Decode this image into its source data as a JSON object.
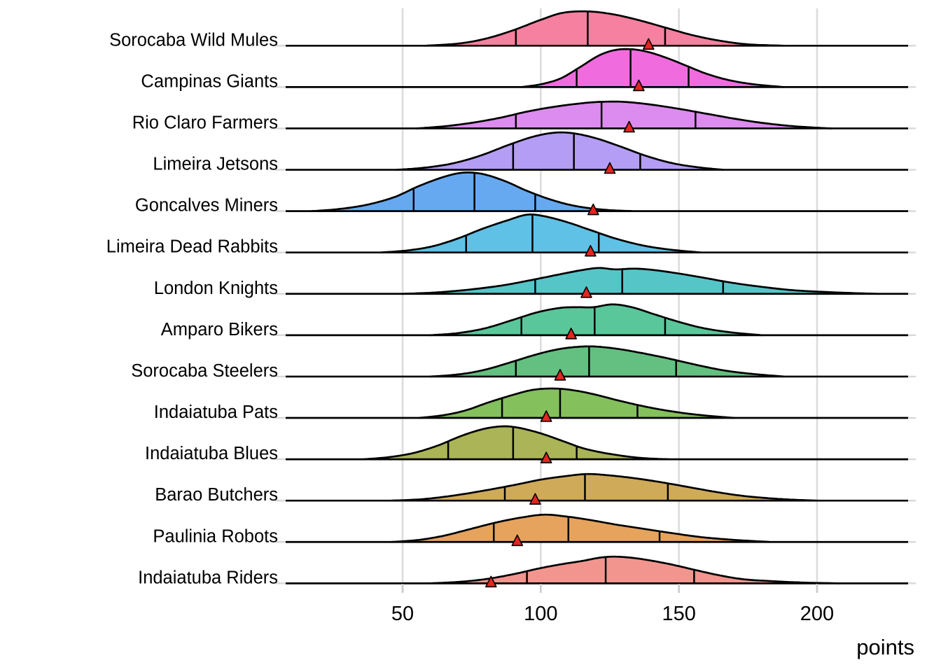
{
  "chart_data": {
    "type": "ridgeline",
    "title": "",
    "xlabel": "points",
    "ylabel": "",
    "x_ticks": [
      50,
      100,
      150,
      200
    ],
    "x_domain": [
      8,
      242
    ],
    "grid": "vertical-major",
    "legend": "none",
    "marker_shape": "red-triangle",
    "marker_color": "#e52521",
    "gridline_color": "#dcdcdc",
    "outline_color": "#000000",
    "quantiles_shown": [
      0.25,
      0.5,
      0.75
    ],
    "teams": [
      {
        "name": "Sorocaba Wild Mules",
        "color": "#f6809f",
        "quartiles": [
          91,
          117,
          145
        ],
        "observed": 139,
        "density": [
          [
            58,
            0
          ],
          [
            70,
            3
          ],
          [
            80,
            10
          ],
          [
            90,
            22
          ],
          [
            100,
            37
          ],
          [
            108,
            47
          ],
          [
            117,
            49
          ],
          [
            126,
            45
          ],
          [
            135,
            37
          ],
          [
            145,
            26
          ],
          [
            155,
            15
          ],
          [
            165,
            7
          ],
          [
            175,
            2
          ],
          [
            188,
            0
          ]
        ]
      },
      {
        "name": "Campinas Giants",
        "color": "#f06cde",
        "quartiles": [
          113,
          132.5,
          153.5
        ],
        "observed": 135.5,
        "density": [
          [
            93,
            0
          ],
          [
            100,
            4
          ],
          [
            107,
            12
          ],
          [
            114,
            28
          ],
          [
            121,
            45
          ],
          [
            127,
            53
          ],
          [
            133,
            54
          ],
          [
            139,
            50
          ],
          [
            146,
            41
          ],
          [
            153,
            30
          ],
          [
            160,
            19
          ],
          [
            168,
            10
          ],
          [
            177,
            4
          ],
          [
            188,
            0
          ]
        ]
      },
      {
        "name": "Rio Claro Farmers",
        "color": "#dc8cee",
        "quartiles": [
          91,
          122,
          156
        ],
        "observed": 132,
        "density": [
          [
            55,
            0
          ],
          [
            65,
            3
          ],
          [
            75,
            8
          ],
          [
            85,
            15
          ],
          [
            95,
            24
          ],
          [
            105,
            31
          ],
          [
            115,
            36
          ],
          [
            122,
            38
          ],
          [
            130,
            38
          ],
          [
            140,
            34
          ],
          [
            150,
            28
          ],
          [
            160,
            21
          ],
          [
            170,
            14
          ],
          [
            180,
            8
          ],
          [
            192,
            3
          ],
          [
            205,
            0
          ]
        ]
      },
      {
        "name": "Limeira Jetsons",
        "color": "#b49df4",
        "quartiles": [
          90,
          112,
          136
        ],
        "observed": 125,
        "density": [
          [
            48,
            0
          ],
          [
            58,
            3
          ],
          [
            68,
            9
          ],
          [
            78,
            20
          ],
          [
            88,
            35
          ],
          [
            97,
            47
          ],
          [
            105,
            53
          ],
          [
            112,
            52
          ],
          [
            120,
            45
          ],
          [
            129,
            33
          ],
          [
            138,
            20
          ],
          [
            147,
            10
          ],
          [
            156,
            4
          ],
          [
            166,
            0
          ]
        ]
      },
      {
        "name": "Goncalves Miners",
        "color": "#66a9f1",
        "quartiles": [
          54,
          76,
          98
        ],
        "observed": 119,
        "density": [
          [
            17,
            0
          ],
          [
            27,
            3
          ],
          [
            37,
            9
          ],
          [
            47,
            20
          ],
          [
            56,
            36
          ],
          [
            65,
            49
          ],
          [
            72,
            55
          ],
          [
            79,
            53
          ],
          [
            87,
            43
          ],
          [
            95,
            29
          ],
          [
            104,
            16
          ],
          [
            113,
            7
          ],
          [
            123,
            2
          ],
          [
            133,
            0
          ]
        ]
      },
      {
        "name": "Limeira Dead Rabbits",
        "color": "#60c1e6",
        "quartiles": [
          73,
          97,
          121
        ],
        "observed": 118,
        "density": [
          [
            42,
            0
          ],
          [
            52,
            3
          ],
          [
            61,
            9
          ],
          [
            70,
            20
          ],
          [
            79,
            34
          ],
          [
            88,
            46
          ],
          [
            95,
            54
          ],
          [
            101,
            52
          ],
          [
            109,
            44
          ],
          [
            118,
            32
          ],
          [
            127,
            20
          ],
          [
            137,
            10
          ],
          [
            147,
            4
          ],
          [
            158,
            0
          ]
        ]
      },
      {
        "name": "London Knights",
        "color": "#55c5c8",
        "quartiles": [
          98,
          129.5,
          166
        ],
        "observed": 116.5,
        "density": [
          [
            50,
            0
          ],
          [
            62,
            2
          ],
          [
            74,
            6
          ],
          [
            86,
            12
          ],
          [
            97,
            20
          ],
          [
            107,
            28
          ],
          [
            115,
            34
          ],
          [
            121,
            37
          ],
          [
            127,
            35
          ],
          [
            134,
            36
          ],
          [
            141,
            34
          ],
          [
            150,
            29
          ],
          [
            159,
            23
          ],
          [
            169,
            16
          ],
          [
            180,
            10
          ],
          [
            192,
            5
          ],
          [
            207,
            2
          ],
          [
            222,
            0
          ]
        ]
      },
      {
        "name": "Amparo Bikers",
        "color": "#5ac79b",
        "quartiles": [
          93,
          119.5,
          145
        ],
        "observed": 111,
        "density": [
          [
            60,
            0
          ],
          [
            70,
            3
          ],
          [
            80,
            10
          ],
          [
            90,
            22
          ],
          [
            99,
            33
          ],
          [
            107,
            39
          ],
          [
            113,
            40
          ],
          [
            119,
            40
          ],
          [
            126,
            44
          ],
          [
            133,
            40
          ],
          [
            141,
            30
          ],
          [
            150,
            19
          ],
          [
            159,
            10
          ],
          [
            169,
            4
          ],
          [
            180,
            0
          ]
        ]
      },
      {
        "name": "Sorocaba Steelers",
        "color": "#64c080",
        "quartiles": [
          91,
          117.5,
          149
        ],
        "observed": 107,
        "density": [
          [
            60,
            0
          ],
          [
            70,
            3
          ],
          [
            79,
            9
          ],
          [
            88,
            19
          ],
          [
            97,
            30
          ],
          [
            105,
            38
          ],
          [
            112,
            42
          ],
          [
            119,
            43
          ],
          [
            127,
            40
          ],
          [
            136,
            34
          ],
          [
            146,
            26
          ],
          [
            156,
            17
          ],
          [
            166,
            9
          ],
          [
            176,
            4
          ],
          [
            188,
            0
          ]
        ]
      },
      {
        "name": "Indaiatuba Pats",
        "color": "#84c05c",
        "quartiles": [
          86,
          107,
          135
        ],
        "observed": 102,
        "density": [
          [
            56,
            0
          ],
          [
            65,
            4
          ],
          [
            73,
            11
          ],
          [
            81,
            22
          ],
          [
            90,
            33
          ],
          [
            97,
            40
          ],
          [
            104,
            42
          ],
          [
            111,
            40
          ],
          [
            119,
            34
          ],
          [
            128,
            25
          ],
          [
            138,
            16
          ],
          [
            148,
            9
          ],
          [
            158,
            4
          ],
          [
            170,
            0
          ]
        ]
      },
      {
        "name": "Indaiatuba Blues",
        "color": "#abb456",
        "quartiles": [
          66.5,
          90,
          113
        ],
        "observed": 102,
        "density": [
          [
            36,
            0
          ],
          [
            45,
            3
          ],
          [
            54,
            9
          ],
          [
            63,
            20
          ],
          [
            71,
            33
          ],
          [
            79,
            43
          ],
          [
            86,
            47
          ],
          [
            92,
            45
          ],
          [
            100,
            37
          ],
          [
            108,
            26
          ],
          [
            116,
            15
          ],
          [
            126,
            7
          ],
          [
            136,
            2
          ],
          [
            146,
            0
          ]
        ]
      },
      {
        "name": "Barao Butchers",
        "color": "#cfaa59",
        "quartiles": [
          87,
          116,
          146
        ],
        "observed": 98,
        "density": [
          [
            46,
            0
          ],
          [
            57,
            2
          ],
          [
            68,
            7
          ],
          [
            79,
            14
          ],
          [
            90,
            22
          ],
          [
            100,
            30
          ],
          [
            109,
            35
          ],
          [
            117,
            38
          ],
          [
            125,
            36
          ],
          [
            134,
            32
          ],
          [
            144,
            26
          ],
          [
            154,
            19
          ],
          [
            164,
            12
          ],
          [
            175,
            6
          ],
          [
            188,
            2
          ],
          [
            200,
            0
          ]
        ]
      },
      {
        "name": "Paulinia Robots",
        "color": "#e6a35d",
        "quartiles": [
          83,
          110,
          143
        ],
        "observed": 91.5,
        "density": [
          [
            46,
            0
          ],
          [
            56,
            3
          ],
          [
            65,
            9
          ],
          [
            74,
            18
          ],
          [
            84,
            28
          ],
          [
            93,
            35
          ],
          [
            101,
            39
          ],
          [
            108,
            37
          ],
          [
            117,
            32
          ],
          [
            127,
            25
          ],
          [
            137,
            19
          ],
          [
            147,
            13
          ],
          [
            158,
            7
          ],
          [
            170,
            3
          ],
          [
            183,
            0
          ]
        ]
      },
      {
        "name": "Indaiatuba Riders",
        "color": "#f2958f",
        "quartiles": [
          95,
          123.5,
          155.5
        ],
        "observed": 82,
        "density": [
          [
            60,
            0
          ],
          [
            70,
            2
          ],
          [
            80,
            6
          ],
          [
            90,
            13
          ],
          [
            99,
            21
          ],
          [
            107,
            27
          ],
          [
            115,
            32
          ],
          [
            122,
            37
          ],
          [
            128,
            38
          ],
          [
            136,
            35
          ],
          [
            146,
            28
          ],
          [
            156,
            19
          ],
          [
            164,
            12
          ],
          [
            173,
            6
          ],
          [
            184,
            3
          ],
          [
            196,
            1
          ],
          [
            208,
            0
          ]
        ]
      }
    ]
  }
}
